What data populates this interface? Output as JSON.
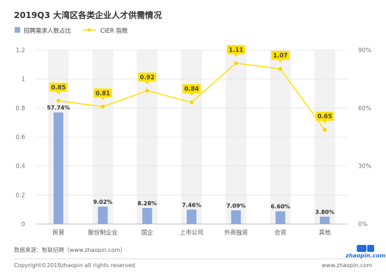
{
  "chart_data": {
    "type": "bar",
    "title": "2019Q3 大湾区各类企业人才供需情况",
    "categories": [
      "民营",
      "股份制企业",
      "国企",
      "上市公司",
      "外商独资",
      "合资",
      "其他"
    ],
    "series": [
      {
        "name": "招聘需求人数占比",
        "type": "bar",
        "axis": "right",
        "values": [
          57.74,
          9.02,
          8.28,
          7.46,
          7.09,
          6.6,
          3.8
        ],
        "labels": [
          "57.74%",
          "9.02%",
          "8.28%",
          "7.46%",
          "7.09%",
          "6.60%",
          "3.80%"
        ]
      },
      {
        "name": "CIER 指数",
        "type": "line",
        "axis": "left",
        "values": [
          0.85,
          0.81,
          0.92,
          0.84,
          1.11,
          1.07,
          0.65
        ],
        "labels": [
          "0.85",
          "0.81",
          "0.92",
          "0.84",
          "1.11",
          "1.07",
          "0.65"
        ]
      }
    ],
    "y_left": {
      "ylim": [
        0,
        1.2
      ],
      "ticks": [
        "0",
        "0.2",
        "0.4",
        "0.6",
        "0.8",
        "1",
        "1.2"
      ]
    },
    "y_right": {
      "ylim": [
        0,
        90
      ],
      "ticks": [
        "0%",
        "30%",
        "60%",
        "90%"
      ]
    },
    "grid": true,
    "legend": "top-left",
    "colors": {
      "bar": "#8ea9db",
      "line": "#ffe100",
      "line_marker": "#f5d800",
      "column_bg": "#f2f2f2",
      "label_box": "#ffe100"
    }
  },
  "footer": {
    "source": "数据来源：智联招聘（www.zhaopin.com）",
    "copyright": "Copyright©2019zhaopin all rights reserved",
    "url": "www.zhaopin.com",
    "logo": "zhaopin.com"
  }
}
